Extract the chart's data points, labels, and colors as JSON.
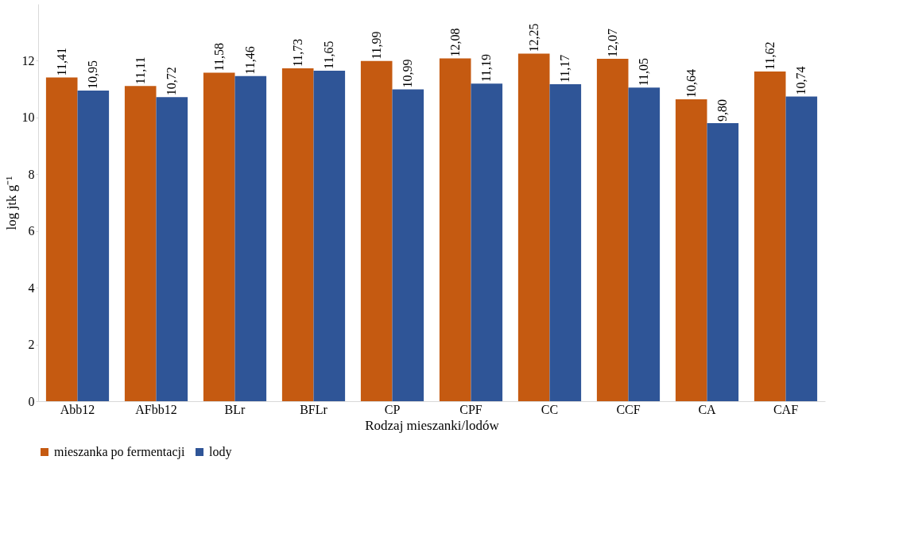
{
  "chart_data": {
    "type": "bar",
    "categories": [
      "Abb12",
      "AFbb12",
      "BLr",
      "BFLr",
      "CP",
      "CPF",
      "CC",
      "CCF",
      "CA",
      "CAF"
    ],
    "series": [
      {
        "name": "mieszanka po fermentacji",
        "color": "#c55a11",
        "values": [
          11.41,
          11.11,
          11.58,
          11.73,
          11.99,
          12.08,
          12.25,
          12.07,
          10.64,
          11.62
        ],
        "value_labels": [
          "11,41",
          "11,11",
          "11,58",
          "11,73",
          "11,99",
          "12,08",
          "12,25",
          "12,07",
          "10,64",
          "11,62"
        ]
      },
      {
        "name": "lody",
        "color": "#2f5597",
        "values": [
          10.95,
          10.72,
          11.46,
          11.65,
          10.99,
          11.19,
          11.17,
          11.05,
          9.8,
          10.74
        ],
        "value_labels": [
          "10,95",
          "10,72",
          "11,46",
          "11,65",
          "10,99",
          "11,19",
          "11,17",
          "11,05",
          "9,80",
          "10,74"
        ]
      }
    ],
    "xlabel": "Rodzaj mieszanki/lodów",
    "ylabel": "log jtk g⁻¹",
    "ylim": [
      0,
      14
    ],
    "yticks": [
      0,
      2,
      4,
      6,
      8,
      10,
      12
    ],
    "grid": false,
    "legend": "bottom"
  }
}
